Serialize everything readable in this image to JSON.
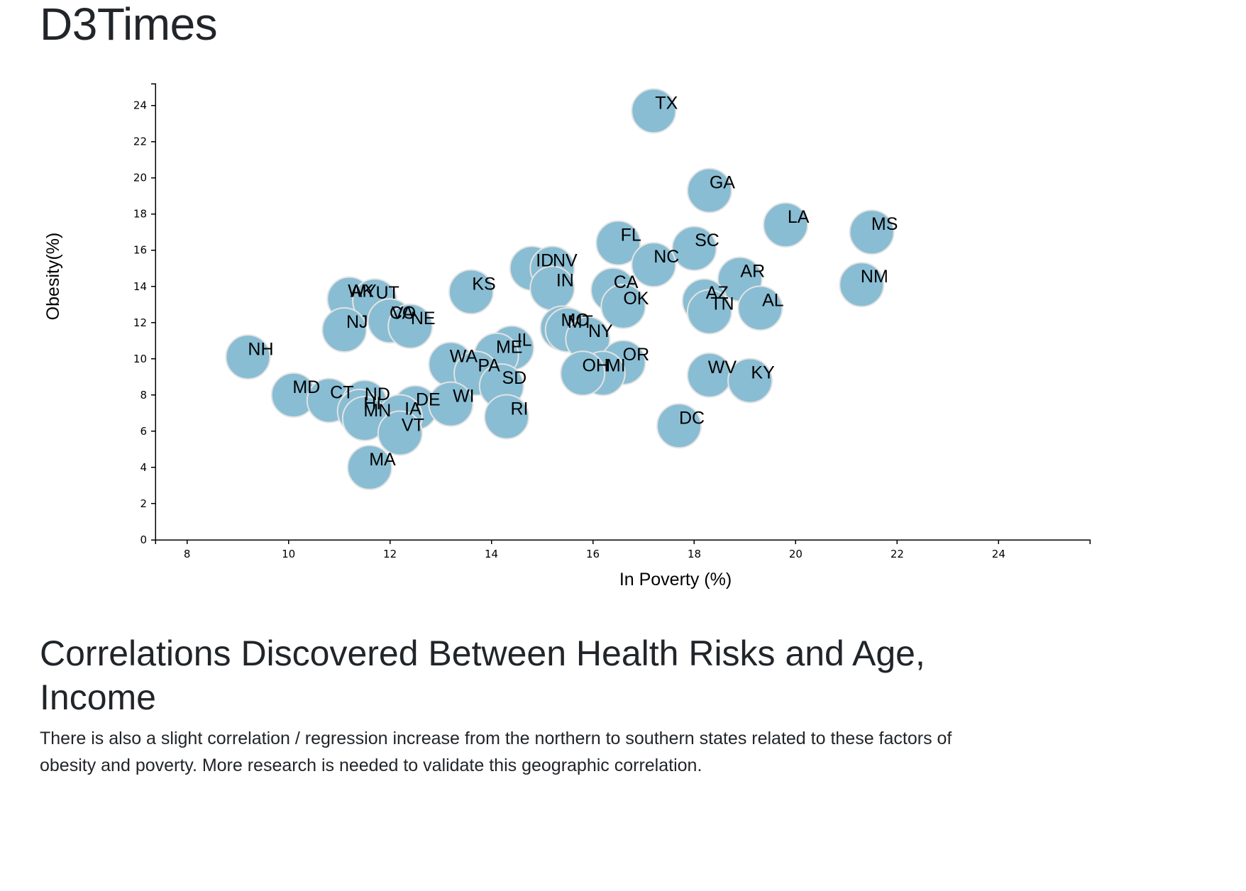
{
  "page": {
    "title": "D3Times",
    "heading": "Correlations Discovered Between Health Risks and Age, Income",
    "paragraph": "There is also a slight correlation / regression increase from the northern to southern states related to these factors of obesity and poverty. More research is needed to validate this geographic correlation."
  },
  "chart_data": {
    "type": "scatter",
    "title": "",
    "xlabel": "In Poverty (%)",
    "ylabel": "Obesity(%)",
    "xlim": [
      7.375,
      25.8
    ],
    "ylim": [
      0,
      25.2
    ],
    "xticks": [
      8,
      10,
      12,
      14,
      16,
      18,
      20,
      22,
      24
    ],
    "yticks": [
      0,
      2,
      4,
      6,
      8,
      10,
      12,
      14,
      16,
      18,
      20,
      22,
      24
    ],
    "grid": false,
    "colors": {
      "marker_fill": "#89bdd3",
      "marker_stroke": "#e3e3e3",
      "label": "#000000"
    },
    "points": [
      {
        "label": "TX",
        "x": 17.2,
        "y": 23.7
      },
      {
        "label": "GA",
        "x": 18.3,
        "y": 19.3
      },
      {
        "label": "LA",
        "x": 19.8,
        "y": 17.4
      },
      {
        "label": "MS",
        "x": 21.5,
        "y": 17.0
      },
      {
        "label": "FL",
        "x": 16.5,
        "y": 16.4
      },
      {
        "label": "SC",
        "x": 18.0,
        "y": 16.1
      },
      {
        "label": "NC",
        "x": 17.2,
        "y": 15.2
      },
      {
        "label": "ID",
        "x": 14.8,
        "y": 15.0
      },
      {
        "label": "NV",
        "x": 15.2,
        "y": 15.0
      },
      {
        "label": "AR",
        "x": 18.9,
        "y": 14.4
      },
      {
        "label": "NM",
        "x": 21.3,
        "y": 14.1
      },
      {
        "label": "IN",
        "x": 15.2,
        "y": 13.9
      },
      {
        "label": "CA",
        "x": 16.4,
        "y": 13.8
      },
      {
        "label": "KS",
        "x": 13.6,
        "y": 13.7
      },
      {
        "label": "WY",
        "x": 11.2,
        "y": 13.3
      },
      {
        "label": "AK",
        "x": 11.2,
        "y": 13.3
      },
      {
        "label": "UT",
        "x": 11.7,
        "y": 13.2
      },
      {
        "label": "AZ",
        "x": 18.2,
        "y": 13.2
      },
      {
        "label": "OK",
        "x": 16.6,
        "y": 12.9
      },
      {
        "label": "AL",
        "x": 19.3,
        "y": 12.8
      },
      {
        "label": "TN",
        "x": 18.3,
        "y": 12.6
      },
      {
        "label": "VA",
        "x": 12.0,
        "y": 12.1
      },
      {
        "label": "CO",
        "x": 12.0,
        "y": 12.1
      },
      {
        "label": "NE",
        "x": 12.4,
        "y": 11.8
      },
      {
        "label": "NJ",
        "x": 11.1,
        "y": 11.6
      },
      {
        "label": "MO",
        "x": 15.4,
        "y": 11.7
      },
      {
        "label": "MT",
        "x": 15.5,
        "y": 11.6
      },
      {
        "label": "NY",
        "x": 15.9,
        "y": 11.1
      },
      {
        "label": "IL",
        "x": 14.4,
        "y": 10.6
      },
      {
        "label": "ME",
        "x": 14.1,
        "y": 10.2
      },
      {
        "label": "NH",
        "x": 9.2,
        "y": 10.1
      },
      {
        "label": "WA",
        "x": 13.2,
        "y": 9.7
      },
      {
        "label": "PA",
        "x": 13.7,
        "y": 9.2
      },
      {
        "label": "OR",
        "x": 16.6,
        "y": 9.8
      },
      {
        "label": "MI",
        "x": 16.2,
        "y": 9.2
      },
      {
        "label": "OH",
        "x": 15.8,
        "y": 9.2
      },
      {
        "label": "WV",
        "x": 18.3,
        "y": 9.1
      },
      {
        "label": "KY",
        "x": 19.1,
        "y": 8.8
      },
      {
        "label": "SD",
        "x": 14.2,
        "y": 8.5
      },
      {
        "label": "MD",
        "x": 10.1,
        "y": 8.0
      },
      {
        "label": "CT",
        "x": 10.8,
        "y": 7.7
      },
      {
        "label": "ND",
        "x": 11.5,
        "y": 7.6
      },
      {
        "label": "DE",
        "x": 12.5,
        "y": 7.3
      },
      {
        "label": "WI",
        "x": 13.2,
        "y": 7.5
      },
      {
        "label": "HI",
        "x": 11.4,
        "y": 7.1
      },
      {
        "label": "IA",
        "x": 12.2,
        "y": 6.8
      },
      {
        "label": "MN",
        "x": 11.5,
        "y": 6.7
      },
      {
        "label": "RI",
        "x": 14.3,
        "y": 6.8
      },
      {
        "label": "DC",
        "x": 17.7,
        "y": 6.3
      },
      {
        "label": "VT",
        "x": 12.2,
        "y": 5.9
      },
      {
        "label": "MA",
        "x": 11.6,
        "y": 4.0
      }
    ]
  }
}
